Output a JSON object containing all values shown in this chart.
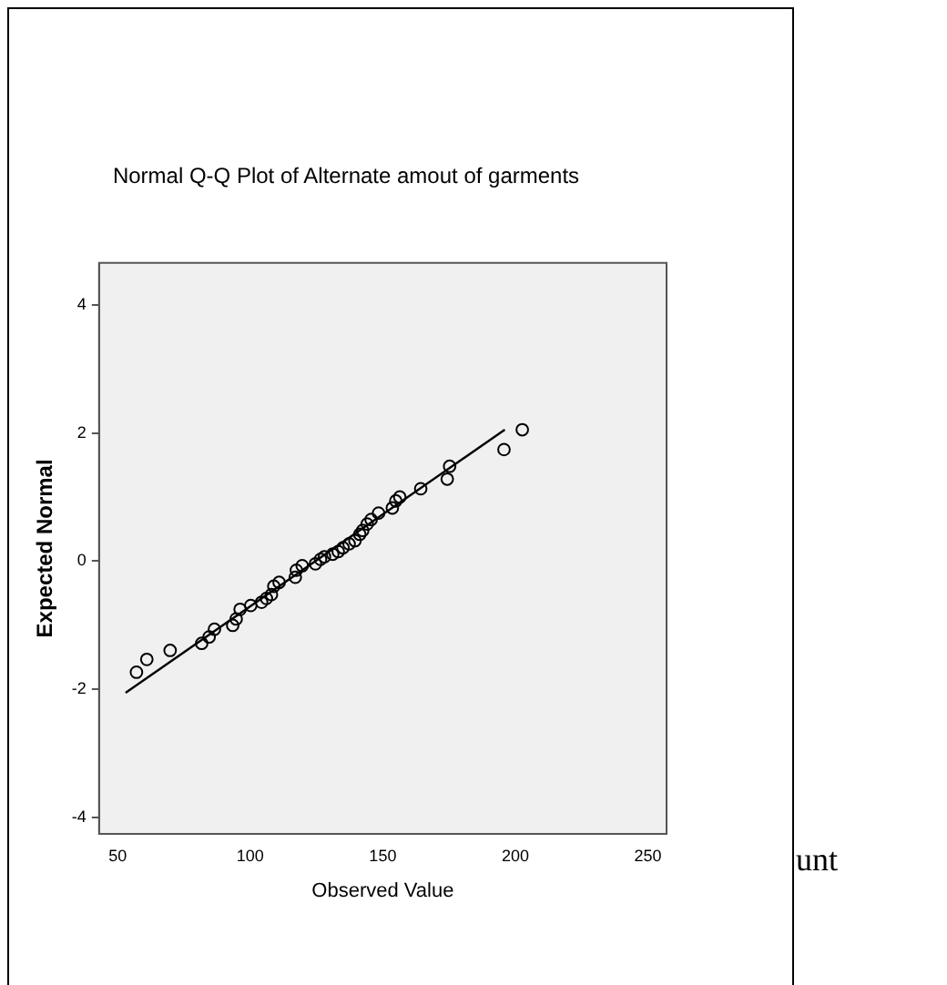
{
  "chart_data": {
    "type": "scatter",
    "title": "Normal Q-Q Plot of Alternate amout of garments",
    "xlabel": "Observed Value",
    "ylabel": "Expected Normal",
    "xlim": [
      43,
      257
    ],
    "xticks": [
      50,
      100,
      150,
      200,
      250
    ],
    "ylim": [
      -4.25,
      4.65
    ],
    "yticks": [
      -4,
      -2,
      0,
      2,
      4
    ],
    "grid": false,
    "legend": false,
    "marker": "circle",
    "series": [
      {
        "color": "#000000",
        "x": [
          57.1,
          61,
          69.8,
          81.7,
          84.5,
          86.5,
          93.4,
          94.7,
          96.2,
          100.2,
          104.3,
          106.1,
          108,
          108.9,
          110.9,
          117,
          117.4,
          119.6,
          124.6,
          126.5,
          128,
          131.1,
          133.2,
          135,
          137.3,
          139.5,
          141.3,
          142.4,
          144.1,
          145.6,
          148.4,
          153.6,
          154.9,
          156.4,
          164.3,
          174.3,
          175.2,
          195.7,
          202.6
        ],
        "values": [
          -1.73,
          -1.53,
          -1.39,
          -1.28,
          -1.18,
          -1.06,
          -1,
          -0.9,
          -0.75,
          -0.69,
          -0.64,
          -0.58,
          -0.52,
          -0.39,
          -0.33,
          -0.25,
          -0.14,
          -0.07,
          -0.04,
          0.03,
          0.07,
          0.11,
          0.15,
          0.21,
          0.27,
          0.32,
          0.42,
          0.48,
          0.58,
          0.65,
          0.75,
          0.83,
          0.94,
          1,
          1.13,
          1.28,
          1.48,
          1.74,
          2.05
        ]
      },
      {
        "type": "line",
        "color": "#000000",
        "marker": "none",
        "x": [
          53,
          196
        ],
        "values": [
          -2.05,
          2.05
        ]
      }
    ],
    "annotations": [
      "unt"
    ]
  }
}
